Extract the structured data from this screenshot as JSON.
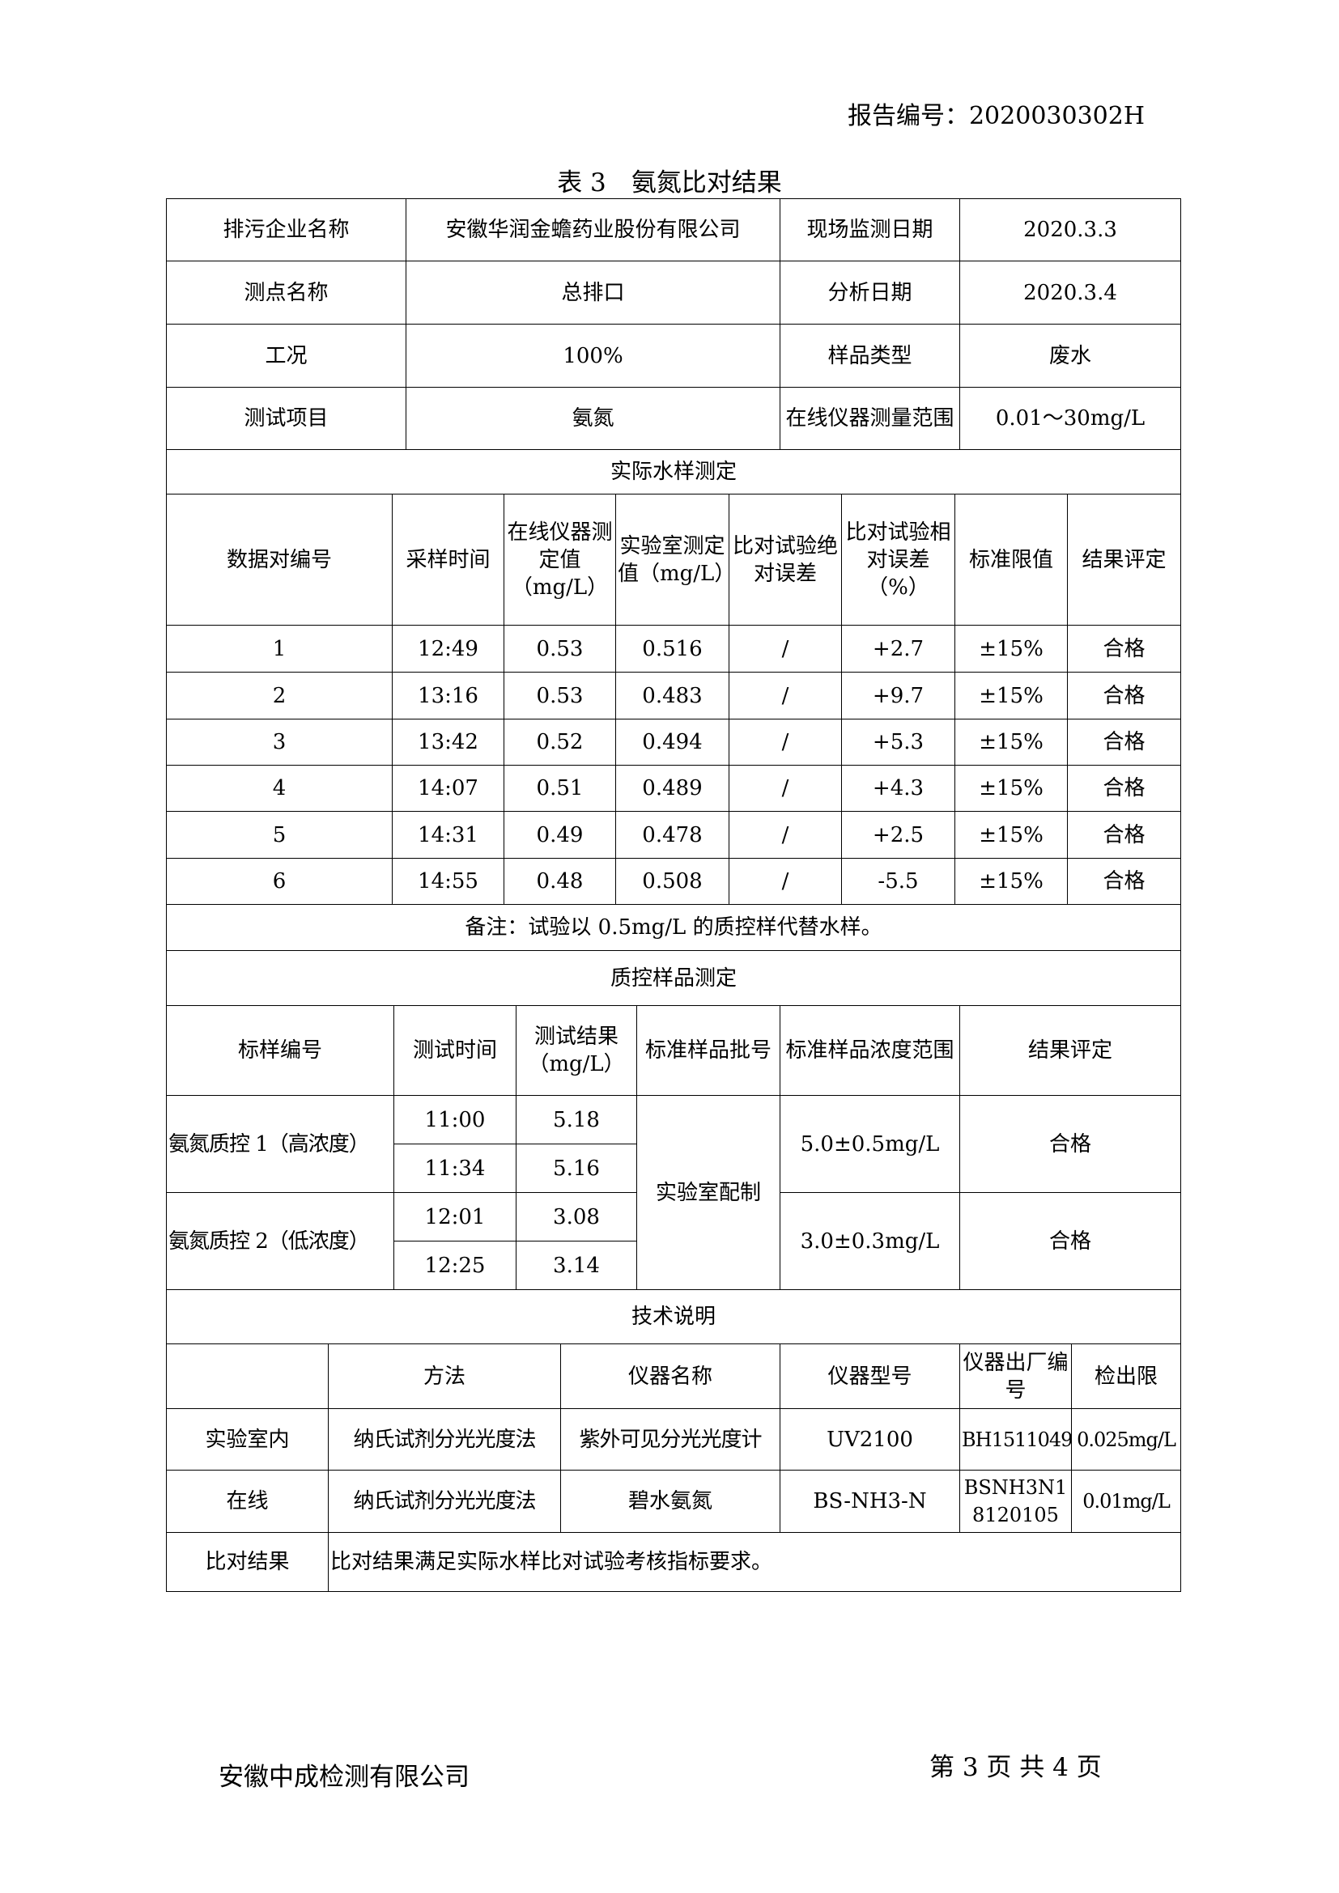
{
  "header": {
    "report_no": "报告编号：2020030302H",
    "title": "表 3　氨氮比对结果"
  },
  "info": {
    "company_label": "排污企业名称",
    "company": "安徽华润金蟾药业股份有限公司",
    "onsite_date_label": "现场监测日期",
    "onsite_date": "2020.3.3",
    "point_label": "测点名称",
    "point": "总排口",
    "analysis_date_label": "分析日期",
    "analysis_date": "2020.3.4",
    "condition_label": "工况",
    "condition": "100%",
    "sample_type_label": "样品类型",
    "sample_type": "废水",
    "item_label": "测试项目",
    "item": "氨氮",
    "range_label": "在线仪器测量范围",
    "range": "0.01～30mg/L"
  },
  "actual": {
    "section_title": "实际水样测定",
    "headers": [
      "数据对编号",
      "采样时间",
      "在线仪器测定值（mg/L）",
      "实验室测定值（mg/L）",
      "比对试验绝对误差",
      "比对试验相对误差（%）",
      "标准限值",
      "结果评定"
    ],
    "rows": [
      [
        "1",
        "12:49",
        "0.53",
        "0.516",
        "/",
        "+2.7",
        "±15%",
        "合格"
      ],
      [
        "2",
        "13:16",
        "0.53",
        "0.483",
        "/",
        "+9.7",
        "±15%",
        "合格"
      ],
      [
        "3",
        "13:42",
        "0.52",
        "0.494",
        "/",
        "+5.3",
        "±15%",
        "合格"
      ],
      [
        "4",
        "14:07",
        "0.51",
        "0.489",
        "/",
        "+4.3",
        "±15%",
        "合格"
      ],
      [
        "5",
        "14:31",
        "0.49",
        "0.478",
        "/",
        "+2.5",
        "±15%",
        "合格"
      ],
      [
        "6",
        "14:55",
        "0.48",
        "0.508",
        "/",
        "-5.5",
        "±15%",
        "合格"
      ]
    ],
    "remark": "备注：试验以 0.5mg/L 的质控样代替水样。"
  },
  "qc": {
    "section_title": "质控样品测定",
    "headers": [
      "标样编号",
      "测试时间",
      "测试结果（mg/L）",
      "标准样品批号",
      "标准样品浓度范围",
      "结果评定"
    ],
    "batch": "实验室配制",
    "groups": [
      {
        "name": "氨氮质控 1（高浓度）",
        "times": [
          "11:00",
          "11:34"
        ],
        "results": [
          "5.18",
          "5.16"
        ],
        "range": "5.0±0.5mg/L",
        "verdict": "合格"
      },
      {
        "name": "氨氮质控 2（低浓度）",
        "times": [
          "12:01",
          "12:25"
        ],
        "results": [
          "3.08",
          "3.14"
        ],
        "range": "3.0±0.3mg/L",
        "verdict": "合格"
      }
    ]
  },
  "tech": {
    "section_title": "技术说明",
    "headers": [
      "",
      "方法",
      "仪器名称",
      "仪器型号",
      "仪器出厂编号",
      "检出限"
    ],
    "rows": [
      [
        "实验室内",
        "纳氏试剂分光光度法",
        "紫外可见分光光度计",
        "UV2100",
        "BH1511049",
        "0.025mg/L"
      ],
      [
        "在线",
        "纳氏试剂分光光度法",
        "碧水氨氮",
        "BS-NH3-N",
        "BSNH3N18120105",
        "0.01mg/L"
      ]
    ],
    "conclusion_label": "比对结果",
    "conclusion": "比对结果满足实际水样比对试验考核指标要求。"
  },
  "footer": {
    "company": "安徽中成检测有限公司",
    "page": "第 3 页 共 4 页"
  }
}
